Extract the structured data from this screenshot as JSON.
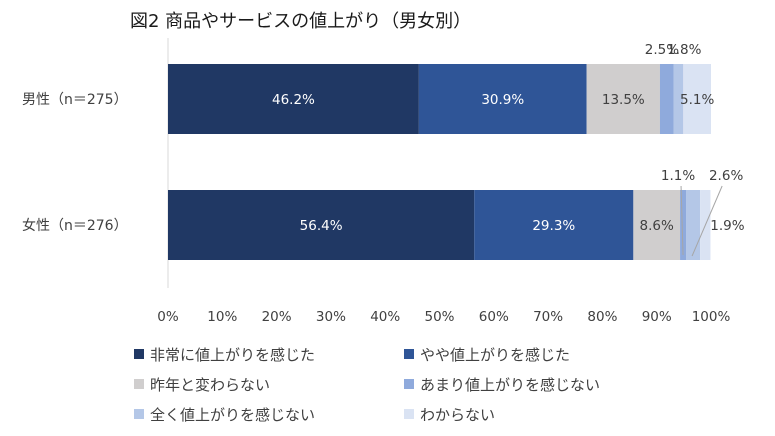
{
  "chart_data": {
    "type": "bar",
    "orientation": "horizontal",
    "stacked": true,
    "title": "図2 商品やサービスの値上がり（男女別）",
    "categories": [
      "男性（n＝275）",
      "女性（n＝276）"
    ],
    "xlim": [
      0,
      100
    ],
    "xticks": [
      "0%",
      "10%",
      "20%",
      "30%",
      "40%",
      "50%",
      "60%",
      "70%",
      "80%",
      "90%",
      "100%"
    ],
    "legend_position": "bottom",
    "series": [
      {
        "name": "非常に値上がりを感じた",
        "color": "#203864",
        "label_color": "#ffffff",
        "values": [
          46.2,
          56.4
        ],
        "labels": [
          "46.2%",
          "56.4%"
        ]
      },
      {
        "name": "やや値上がりを感じた",
        "color": "#2f5597",
        "label_color": "#ffffff",
        "values": [
          30.9,
          29.3
        ],
        "labels": [
          "30.9%",
          "29.3%"
        ]
      },
      {
        "name": "昨年と変わらない",
        "color": "#d0cece",
        "label_color": "#404040",
        "values": [
          13.5,
          8.6
        ],
        "labels": [
          "13.5%",
          "8.6%"
        ]
      },
      {
        "name": "あまり値上がりを感じない",
        "color": "#8faadc",
        "label_color": "#404040",
        "values": [
          2.5,
          1.1
        ],
        "labels": [
          "2.5%",
          "1.1%"
        ]
      },
      {
        "name": "全く値上がりを感じない",
        "color": "#b4c7e7",
        "label_color": "#404040",
        "values": [
          1.8,
          2.6
        ],
        "labels": [
          "1.8%",
          "2.6%"
        ]
      },
      {
        "name": "わからない",
        "color": "#dae3f3",
        "label_color": "#404040",
        "values": [
          5.1,
          1.9
        ],
        "labels": [
          "5.1%",
          "1.9%"
        ]
      }
    ]
  }
}
